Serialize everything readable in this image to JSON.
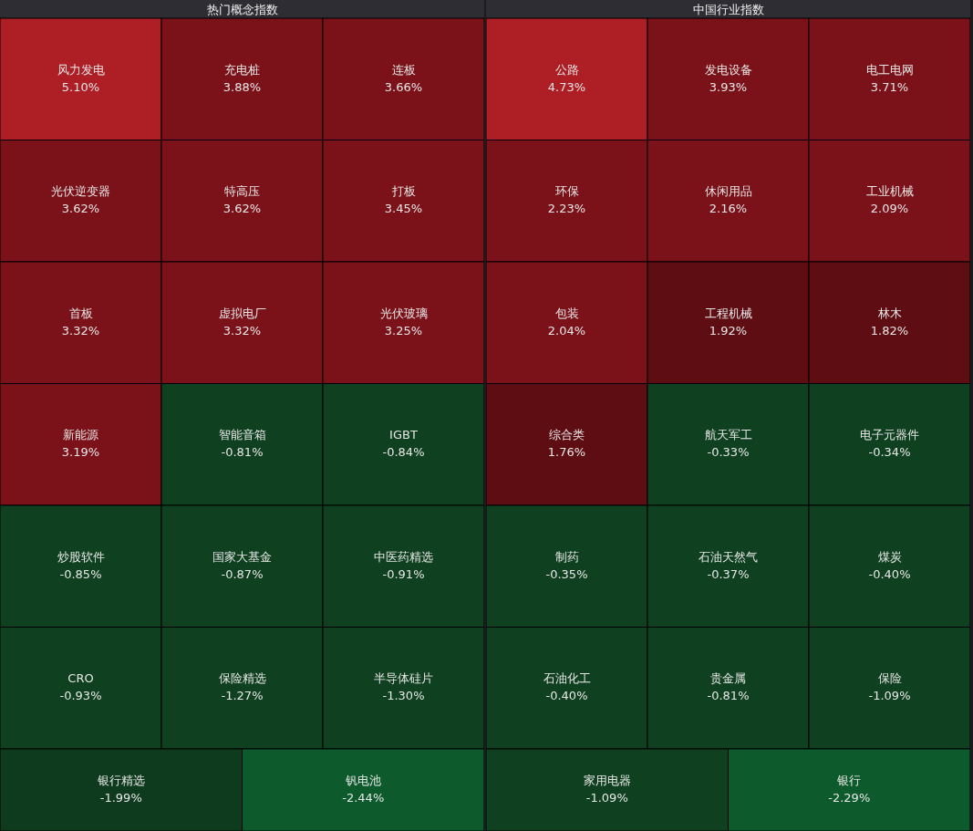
{
  "chart_data": [
    {
      "type": "other",
      "title": "热门概念指数",
      "categories": [
        "风力发电",
        "充电桩",
        "连板",
        "光伏逆变器",
        "特高压",
        "打板",
        "首板",
        "虚拟电厂",
        "光伏玻璃",
        "新能源",
        "智能音箱",
        "IGBT",
        "炒股软件",
        "国家大基金",
        "中医药精选",
        "CRO",
        "保险精选",
        "半导体硅片",
        "银行精选",
        "钒电池"
      ],
      "values": [
        5.1,
        3.88,
        3.66,
        3.62,
        3.62,
        3.45,
        3.32,
        3.32,
        3.25,
        3.19,
        -0.81,
        -0.84,
        -0.85,
        -0.87,
        -0.91,
        -0.93,
        -1.27,
        -1.3,
        -1.99,
        -2.44
      ],
      "value_labels": [
        "5.10%",
        "3.88%",
        "3.66%",
        "3.62%",
        "3.62%",
        "3.45%",
        "3.32%",
        "3.32%",
        "3.25%",
        "3.19%",
        "-0.81%",
        "-0.84%",
        "-0.85%",
        "-0.87%",
        "-0.91%",
        "-0.93%",
        "-1.27%",
        "-1.30%",
        "-1.99%",
        "-2.44%"
      ],
      "colors": [
        "#ae1e25",
        "#7b1219",
        "#7b1219",
        "#7b1219",
        "#7b1219",
        "#7b1219",
        "#7b1219",
        "#7b1219",
        "#7b1219",
        "#7b1219",
        "#0f4020",
        "#0f4020",
        "#0f4020",
        "#0f4020",
        "#0f4020",
        "#0f4020",
        "#0f4020",
        "#0f4020",
        "#0e3a1d",
        "#0d5a2c"
      ]
    },
    {
      "type": "other",
      "title": "中国行业指数",
      "categories": [
        "公路",
        "发电设备",
        "电工电网",
        "环保",
        "休闲用品",
        "工业机械",
        "包装",
        "工程机械",
        "林木",
        "综合类",
        "航天军工",
        "电子元器件",
        "制药",
        "石油天然气",
        "煤炭",
        "石油化工",
        "贵金属",
        "保险",
        "家用电器",
        "银行"
      ],
      "values": [
        4.73,
        3.93,
        3.71,
        2.23,
        2.16,
        2.09,
        2.04,
        1.92,
        1.82,
        1.76,
        -0.33,
        -0.34,
        -0.35,
        -0.37,
        -0.4,
        -0.4,
        -0.81,
        -1.09,
        -1.09,
        -2.29
      ],
      "value_labels": [
        "4.73%",
        "3.93%",
        "3.71%",
        "2.23%",
        "2.16%",
        "2.09%",
        "2.04%",
        "1.92%",
        "1.82%",
        "1.76%",
        "-0.33%",
        "-0.34%",
        "-0.35%",
        "-0.37%",
        "-0.40%",
        "-0.40%",
        "-0.81%",
        "-1.09%",
        "-1.09%",
        "-2.29%"
      ],
      "colors": [
        "#ae1e25",
        "#7b1219",
        "#7b1219",
        "#7b1219",
        "#7b1219",
        "#7b1219",
        "#7b1219",
        "#5e0d13",
        "#5e0d13",
        "#5e0d13",
        "#0f4020",
        "#0f4020",
        "#0f4020",
        "#0f4020",
        "#0f4020",
        "#0f4020",
        "#0f4020",
        "#0f4020",
        "#0f4020",
        "#0d5a2c"
      ]
    }
  ]
}
